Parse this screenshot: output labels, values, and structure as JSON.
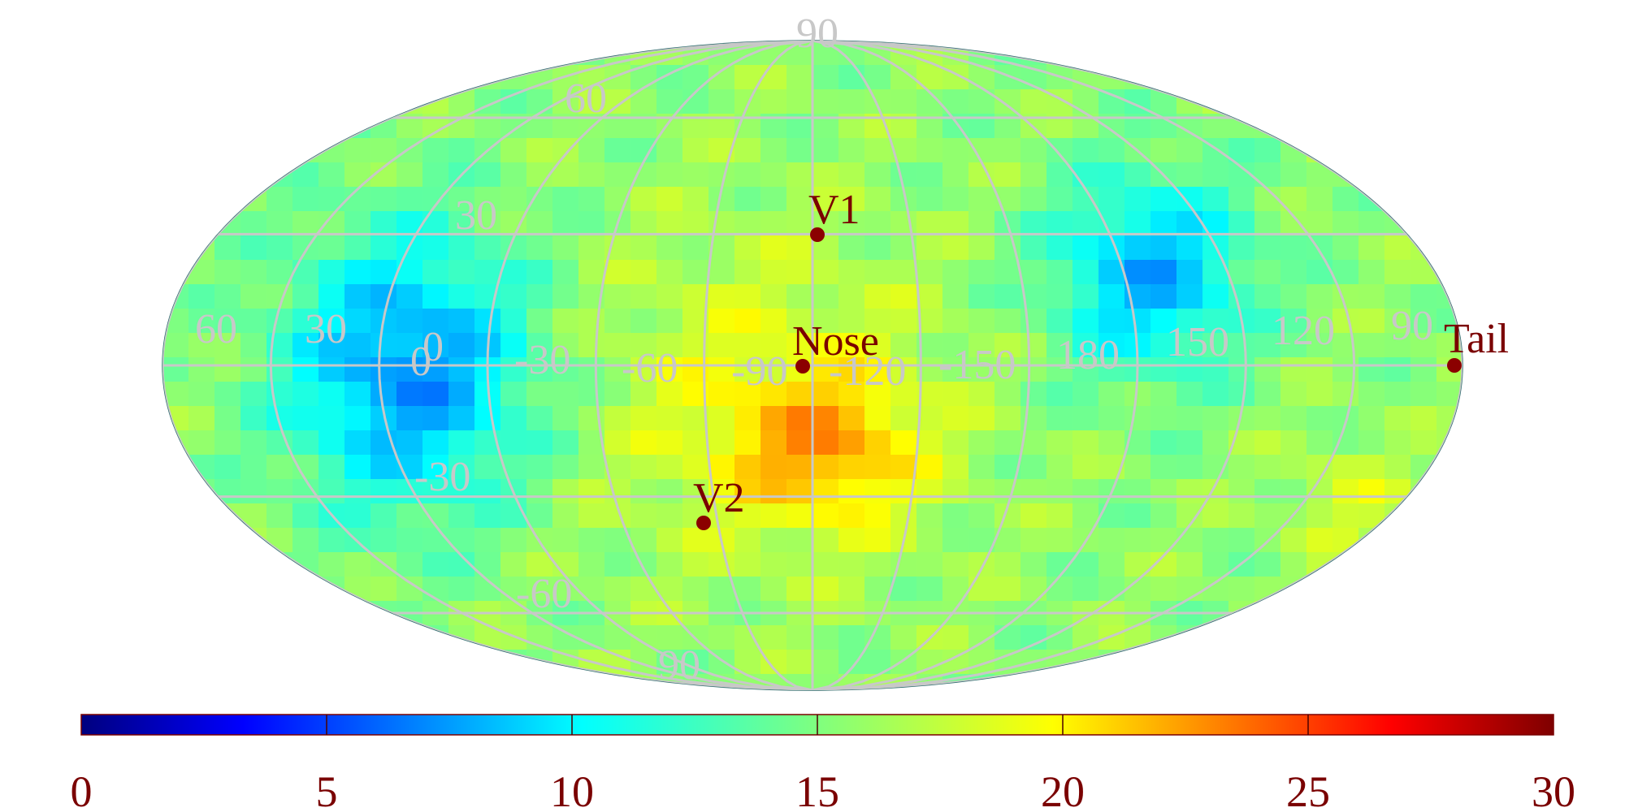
{
  "map": {
    "projection": "mollweide",
    "color_scale": "jet",
    "description_values": {
      "field_min": 0,
      "field_max": 30
    },
    "latitude_labels": [
      "90",
      "60",
      "30",
      "0",
      "-30",
      "-60",
      "90"
    ],
    "longitude_labels": [
      "60",
      "30",
      "0",
      "-30",
      "-60",
      "-90",
      "-120",
      "-150",
      "180",
      "150",
      "120",
      "90"
    ],
    "markers": [
      {
        "id": "v1",
        "label": "V1",
        "lon": -105,
        "lat": 35
      },
      {
        "id": "nose",
        "label": "Nose",
        "lon": -105,
        "lat": 0
      },
      {
        "id": "v2",
        "label": "V2",
        "lon": -75,
        "lat": -40
      },
      {
        "id": "tail",
        "label": "Tail",
        "lon": 75,
        "lat": 0
      }
    ],
    "colors": {
      "grid": "#c8c8c8",
      "marker": "#8b0000",
      "label": "#7a0000"
    }
  },
  "colorbar": {
    "min": 0,
    "max": 30,
    "ticks": [
      "0",
      "5",
      "10",
      "15",
      "20",
      "25",
      "30"
    ]
  }
}
